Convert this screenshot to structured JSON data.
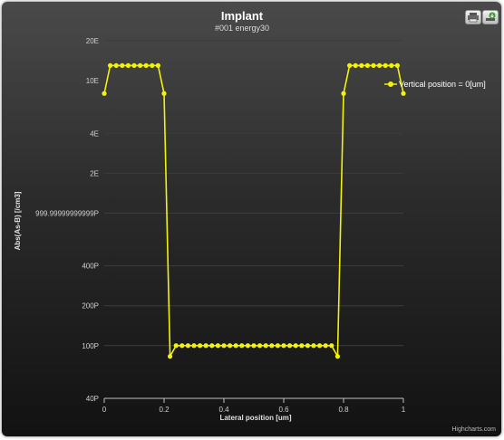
{
  "chart_data": {
    "type": "line",
    "title": "Implant",
    "subtitle": "#001 energy30",
    "xlabel": "Lateral position [um]",
    "ylabel": "Abs(As-B) [/cm3]",
    "y_scale": "log",
    "xlim": [
      0,
      1
    ],
    "ylim": [
      40,
      20000
    ],
    "x_ticks": [
      {
        "value": 0,
        "label": "0"
      },
      {
        "value": 0.2,
        "label": "0.2"
      },
      {
        "value": 0.4,
        "label": "0.4"
      },
      {
        "value": 0.6,
        "label": "0.6"
      },
      {
        "value": 0.8,
        "label": "0.8"
      },
      {
        "value": 1,
        "label": "1"
      }
    ],
    "y_ticks": [
      {
        "value": 20000,
        "label": "20E"
      },
      {
        "value": 10000,
        "label": "10E"
      },
      {
        "value": 4000,
        "label": "4E"
      },
      {
        "value": 2000,
        "label": "2E"
      },
      {
        "value": 1000,
        "label": "999.99999999999P"
      },
      {
        "value": 400,
        "label": "400P"
      },
      {
        "value": 200,
        "label": "200P"
      },
      {
        "value": 100,
        "label": "100P"
      },
      {
        "value": 40,
        "label": "40P"
      }
    ],
    "grid": true,
    "legend": "top-right",
    "series": [
      {
        "name": "Vertical position = 0[um]",
        "color": "#f2f20a",
        "x": [
          0,
          0.02,
          0.04,
          0.06,
          0.08,
          0.1,
          0.12,
          0.14,
          0.16,
          0.18,
          0.2,
          0.22,
          0.24,
          0.26,
          0.28,
          0.3,
          0.32,
          0.34,
          0.36,
          0.38,
          0.4,
          0.42,
          0.44,
          0.46,
          0.48,
          0.5,
          0.52,
          0.54,
          0.56,
          0.58,
          0.6,
          0.62,
          0.64,
          0.66,
          0.68,
          0.7,
          0.72,
          0.74,
          0.76,
          0.78,
          0.8,
          0.82,
          0.84,
          0.86,
          0.88,
          0.9,
          0.92,
          0.94,
          0.96,
          0.98,
          1.0
        ],
        "y": [
          8000,
          13000,
          13000,
          13000,
          13000,
          13000,
          13000,
          13000,
          13000,
          13000,
          8000,
          83,
          100,
          100,
          100,
          100,
          100,
          100,
          100,
          100,
          100,
          100,
          100,
          100,
          100,
          100,
          100,
          100,
          100,
          100,
          100,
          100,
          100,
          100,
          100,
          100,
          100,
          100,
          100,
          83,
          8000,
          13000,
          13000,
          13000,
          13000,
          13000,
          13000,
          13000,
          13000,
          13000,
          8000
        ]
      }
    ],
    "credit": "Highcharts.com"
  }
}
